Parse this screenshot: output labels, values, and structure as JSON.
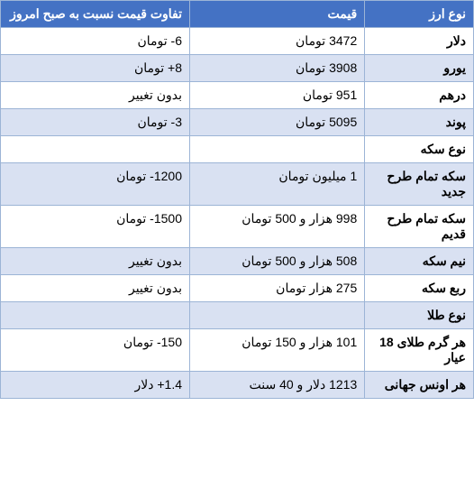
{
  "headers": {
    "type": "نوع ارز",
    "price": "قیمت",
    "diff": "تفاوت قیمت نسبت به صبح امروز"
  },
  "rows": [
    {
      "type": "دلار",
      "price": "3472 تومان",
      "diff": "6- تومان",
      "alt": false,
      "section": false
    },
    {
      "type": "یورو",
      "price": "3908 تومان",
      "diff": "8+ تومان",
      "alt": true,
      "section": false
    },
    {
      "type": "درهم",
      "price": "951 تومان",
      "diff": "بدون تغییر",
      "alt": false,
      "section": false
    },
    {
      "type": "پوند",
      "price": "5095 تومان",
      "diff": "3- تومان",
      "alt": true,
      "section": false
    },
    {
      "type": "نوع سکه",
      "price": "",
      "diff": "",
      "alt": false,
      "section": true
    },
    {
      "type": "سکه تمام طرح جدید",
      "price": "1 میلیون تومان",
      "diff": "1200- تومان",
      "alt": true,
      "section": false
    },
    {
      "type": "سکه تمام طرح قدیم",
      "price": "998 هزار و 500 تومان",
      "diff": "1500- تومان",
      "alt": false,
      "section": false
    },
    {
      "type": "نیم سکه",
      "price": "508 هزار و 500 تومان",
      "diff": "بدون تغییر",
      "alt": true,
      "section": false
    },
    {
      "type": "ربع سکه",
      "price": "275 هزار تومان",
      "diff": "بدون تغییر",
      "alt": false,
      "section": false
    },
    {
      "type": "نوع طلا",
      "price": "",
      "diff": "",
      "alt": true,
      "section": true
    },
    {
      "type": "هر گرم طلای 18 عیار",
      "price": "101 هزار و 150 تومان",
      "diff": "150- تومان",
      "alt": false,
      "section": false
    },
    {
      "type": "هر اونس جهانی",
      "price": "1213 دلار و 40 سنت",
      "diff": "1.4+ دلار",
      "alt": true,
      "section": false
    }
  ],
  "colors": {
    "header_bg": "#4472c4",
    "header_text": "#ffffff",
    "alt_row_bg": "#d9e1f2",
    "normal_row_bg": "#ffffff",
    "border": "#9cb4d6"
  }
}
